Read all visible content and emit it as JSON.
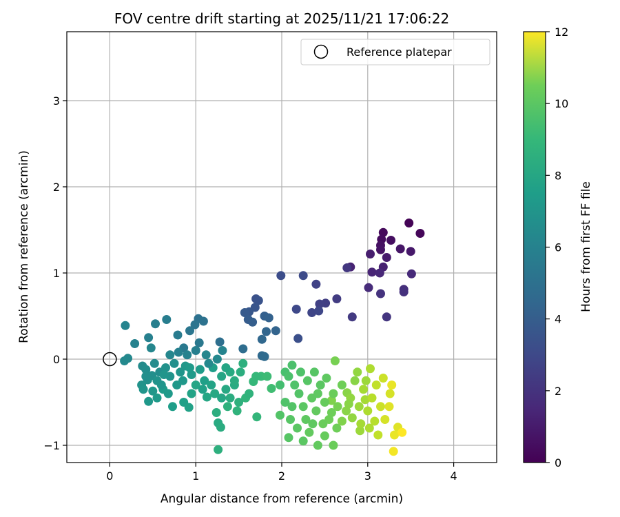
{
  "chart_data": {
    "type": "scatter",
    "title": "FOV centre drift starting at 2025/11/21 17:06:22",
    "xlabel": "Angular distance from reference (arcmin)",
    "ylabel": "Rotation from reference (arcmin)",
    "xlim": [
      -0.5,
      4.5
    ],
    "ylim": [
      -1.2,
      3.8
    ],
    "xticks": [
      0,
      1,
      2,
      3,
      4
    ],
    "yticks": [
      -1,
      0,
      1,
      2,
      3
    ],
    "grid": true,
    "legend": {
      "placement": "top-right",
      "entries": [
        {
          "label": "Reference platepar",
          "marker": "open-circle"
        }
      ]
    },
    "reference_point": {
      "x": 0,
      "y": 0
    },
    "colorbar": {
      "label": "Hours from first FF file",
      "range": [
        0,
        12
      ],
      "ticks": [
        0,
        2,
        4,
        6,
        8,
        10,
        12
      ],
      "colormap": "viridis"
    },
    "series": [
      {
        "marker": "filled-circle",
        "color_by": "hours",
        "points": [
          {
            "x": 3.48,
            "y": 1.58,
            "c": 0.1
          },
          {
            "x": 3.61,
            "y": 1.46,
            "c": 0.2
          },
          {
            "x": 3.18,
            "y": 1.47,
            "c": 0.3
          },
          {
            "x": 3.16,
            "y": 1.39,
            "c": 0.4
          },
          {
            "x": 3.27,
            "y": 1.38,
            "c": 0.5
          },
          {
            "x": 3.15,
            "y": 1.32,
            "c": 0.6
          },
          {
            "x": 3.15,
            "y": 1.27,
            "c": 0.7
          },
          {
            "x": 3.38,
            "y": 1.28,
            "c": 0.8
          },
          {
            "x": 3.5,
            "y": 1.25,
            "c": 0.9
          },
          {
            "x": 3.22,
            "y": 1.18,
            "c": 1.0
          },
          {
            "x": 3.03,
            "y": 1.22,
            "c": 1.1
          },
          {
            "x": 3.18,
            "y": 1.07,
            "c": 1.2
          },
          {
            "x": 2.8,
            "y": 1.07,
            "c": 1.3
          },
          {
            "x": 3.05,
            "y": 1.01,
            "c": 1.4
          },
          {
            "x": 3.14,
            "y": 1.0,
            "c": 1.5
          },
          {
            "x": 3.51,
            "y": 0.99,
            "c": 1.6
          },
          {
            "x": 3.01,
            "y": 0.83,
            "c": 1.7
          },
          {
            "x": 3.42,
            "y": 0.81,
            "c": 1.8
          },
          {
            "x": 3.42,
            "y": 0.78,
            "c": 1.9
          },
          {
            "x": 3.15,
            "y": 0.76,
            "c": 2.0
          },
          {
            "x": 3.22,
            "y": 0.49,
            "c": 2.1
          },
          {
            "x": 2.76,
            "y": 1.06,
            "c": 2.2
          },
          {
            "x": 2.82,
            "y": 0.49,
            "c": 2.3
          },
          {
            "x": 2.64,
            "y": 0.7,
            "c": 2.4
          },
          {
            "x": 2.51,
            "y": 0.65,
            "c": 2.5
          },
          {
            "x": 2.44,
            "y": 0.64,
            "c": 2.6
          },
          {
            "x": 2.4,
            "y": 0.87,
            "c": 2.7
          },
          {
            "x": 2.35,
            "y": 0.54,
            "c": 2.8
          },
          {
            "x": 2.43,
            "y": 0.56,
            "c": 2.9
          },
          {
            "x": 2.17,
            "y": 0.58,
            "c": 3.0
          },
          {
            "x": 2.25,
            "y": 0.97,
            "c": 3.1
          },
          {
            "x": 1.99,
            "y": 0.97,
            "c": 3.2
          },
          {
            "x": 2.19,
            "y": 0.24,
            "c": 3.3
          },
          {
            "x": 1.7,
            "y": 0.7,
            "c": 3.4
          },
          {
            "x": 1.73,
            "y": 0.68,
            "c": 3.5
          },
          {
            "x": 1.69,
            "y": 0.6,
            "c": 3.6
          },
          {
            "x": 1.62,
            "y": 0.55,
            "c": 3.7
          },
          {
            "x": 1.57,
            "y": 0.54,
            "c": 3.8
          },
          {
            "x": 1.61,
            "y": 0.46,
            "c": 3.9
          },
          {
            "x": 1.66,
            "y": 0.43,
            "c": 4.0
          },
          {
            "x": 1.8,
            "y": 0.5,
            "c": 4.1
          },
          {
            "x": 1.85,
            "y": 0.48,
            "c": 4.2
          },
          {
            "x": 1.93,
            "y": 0.33,
            "c": 4.3
          },
          {
            "x": 1.82,
            "y": 0.32,
            "c": 4.4
          },
          {
            "x": 1.77,
            "y": 0.23,
            "c": 4.5
          },
          {
            "x": 1.77,
            "y": 0.04,
            "c": 4.6
          },
          {
            "x": 1.8,
            "y": 0.03,
            "c": 4.7
          },
          {
            "x": 1.55,
            "y": 0.12,
            "c": 4.8
          },
          {
            "x": 1.28,
            "y": 0.2,
            "c": 4.9
          },
          {
            "x": 1.03,
            "y": 0.47,
            "c": 5.0
          },
          {
            "x": 1.09,
            "y": 0.44,
            "c": 5.1
          },
          {
            "x": 0.99,
            "y": 0.4,
            "c": 5.2
          },
          {
            "x": 0.93,
            "y": 0.33,
            "c": 5.3
          },
          {
            "x": 1.04,
            "y": 0.19,
            "c": 5.4
          },
          {
            "x": 0.86,
            "y": 0.13,
            "c": 5.5
          },
          {
            "x": 0.79,
            "y": 0.28,
            "c": 5.6
          },
          {
            "x": 0.66,
            "y": 0.46,
            "c": 5.7
          },
          {
            "x": 0.53,
            "y": 0.41,
            "c": 5.8
          },
          {
            "x": 0.45,
            "y": 0.25,
            "c": 5.9
          },
          {
            "x": 0.29,
            "y": 0.18,
            "c": 6.0
          },
          {
            "x": 0.18,
            "y": 0.39,
            "c": 6.1
          },
          {
            "x": 0.48,
            "y": 0.13,
            "c": 6.2
          },
          {
            "x": 0.21,
            "y": 0.01,
            "c": 6.3
          },
          {
            "x": 0.17,
            "y": -0.02,
            "c": 6.4
          },
          {
            "x": 0.38,
            "y": -0.08,
            "c": 6.5
          },
          {
            "x": 0.42,
            "y": -0.12,
            "c": 6.6
          },
          {
            "x": 0.49,
            "y": -0.19,
            "c": 6.7
          },
          {
            "x": 0.44,
            "y": -0.24,
            "c": 6.8
          },
          {
            "x": 0.37,
            "y": -0.3,
            "c": 6.9
          },
          {
            "x": 0.39,
            "y": -0.35,
            "c": 7.0
          },
          {
            "x": 0.5,
            "y": -0.37,
            "c": 7.1
          },
          {
            "x": 0.45,
            "y": -0.49,
            "c": 7.2
          },
          {
            "x": 0.55,
            "y": -0.45,
            "c": 7.3
          },
          {
            "x": 0.62,
            "y": -0.35,
            "c": 7.4
          },
          {
            "x": 0.73,
            "y": -0.55,
            "c": 7.5
          },
          {
            "x": 0.86,
            "y": -0.5,
            "c": 7.6
          },
          {
            "x": 0.92,
            "y": -0.56,
            "c": 7.7
          },
          {
            "x": 0.95,
            "y": -0.4,
            "c": 7.8
          },
          {
            "x": 1.0,
            "y": -0.3,
            "c": 7.9
          },
          {
            "x": 1.13,
            "y": -0.44,
            "c": 8.0
          },
          {
            "x": 1.22,
            "y": -0.4,
            "c": 8.1
          },
          {
            "x": 1.26,
            "y": -0.74,
            "c": 8.2
          },
          {
            "x": 1.29,
            "y": -0.79,
            "c": 8.3
          },
          {
            "x": 1.24,
            "y": -0.62,
            "c": 8.4
          },
          {
            "x": 1.26,
            "y": -1.05,
            "c": 8.5
          },
          {
            "x": 1.37,
            "y": -0.55,
            "c": 8.6
          },
          {
            "x": 1.48,
            "y": -0.6,
            "c": 8.7
          },
          {
            "x": 1.58,
            "y": -0.45,
            "c": 8.8
          },
          {
            "x": 1.71,
            "y": -0.67,
            "c": 8.9
          },
          {
            "x": 1.67,
            "y": -0.26,
            "c": 9.0
          },
          {
            "x": 1.76,
            "y": -0.2,
            "c": 9.1
          },
          {
            "x": 1.83,
            "y": -0.2,
            "c": 9.2
          },
          {
            "x": 1.88,
            "y": -0.34,
            "c": 9.3
          },
          {
            "x": 1.98,
            "y": -0.3,
            "c": 9.4
          },
          {
            "x": 2.04,
            "y": -0.15,
            "c": 9.5
          },
          {
            "x": 2.12,
            "y": -0.07,
            "c": 9.6
          },
          {
            "x": 2.04,
            "y": -0.5,
            "c": 9.7
          },
          {
            "x": 1.98,
            "y": -0.65,
            "c": 9.8
          },
          {
            "x": 2.08,
            "y": -0.91,
            "c": 9.9
          },
          {
            "x": 2.25,
            "y": -0.95,
            "c": 10.0
          },
          {
            "x": 2.36,
            "y": -0.75,
            "c": 10.1
          },
          {
            "x": 2.42,
            "y": -1.0,
            "c": 10.2
          },
          {
            "x": 2.5,
            "y": -0.89,
            "c": 10.3
          },
          {
            "x": 2.6,
            "y": -1.0,
            "c": 10.4
          },
          {
            "x": 2.64,
            "y": -0.8,
            "c": 10.5
          },
          {
            "x": 2.62,
            "y": -0.02,
            "c": 10.6
          },
          {
            "x": 2.58,
            "y": -0.48,
            "c": 10.7
          },
          {
            "x": 2.76,
            "y": -0.39,
            "c": 10.8
          },
          {
            "x": 2.82,
            "y": -0.68,
            "c": 10.9
          },
          {
            "x": 2.91,
            "y": -0.83,
            "c": 11.0
          },
          {
            "x": 2.97,
            "y": -0.47,
            "c": 11.1
          },
          {
            "x": 3.03,
            "y": -0.11,
            "c": 11.2
          },
          {
            "x": 3.08,
            "y": -0.72,
            "c": 11.3
          },
          {
            "x": 3.12,
            "y": -0.88,
            "c": 11.4
          },
          {
            "x": 3.18,
            "y": -0.22,
            "c": 11.5
          },
          {
            "x": 3.26,
            "y": -0.4,
            "c": 11.6
          },
          {
            "x": 3.35,
            "y": -0.79,
            "c": 11.7
          },
          {
            "x": 3.31,
            "y": -0.88,
            "c": 11.8
          },
          {
            "x": 3.3,
            "y": -1.07,
            "c": 11.9
          },
          {
            "x": 3.4,
            "y": -0.85,
            "c": 12.0
          },
          {
            "x": 0.58,
            "y": -0.15,
            "c": 6.6
          },
          {
            "x": 0.65,
            "y": -0.1,
            "c": 6.8
          },
          {
            "x": 0.7,
            "y": -0.2,
            "c": 6.9
          },
          {
            "x": 0.75,
            "y": -0.05,
            "c": 6.7
          },
          {
            "x": 0.82,
            "y": -0.15,
            "c": 7.0
          },
          {
            "x": 0.78,
            "y": -0.3,
            "c": 7.2
          },
          {
            "x": 0.88,
            "y": -0.08,
            "c": 7.1
          },
          {
            "x": 0.95,
            "y": -0.18,
            "c": 7.3
          },
          {
            "x": 1.05,
            "y": -0.12,
            "c": 7.4
          },
          {
            "x": 1.1,
            "y": -0.25,
            "c": 7.6
          },
          {
            "x": 1.18,
            "y": -0.3,
            "c": 7.8
          },
          {
            "x": 1.2,
            "y": -0.1,
            "c": 7.5
          },
          {
            "x": 1.3,
            "y": -0.2,
            "c": 7.9
          },
          {
            "x": 1.35,
            "y": -0.35,
            "c": 8.1
          },
          {
            "x": 1.4,
            "y": -0.45,
            "c": 8.3
          },
          {
            "x": 1.45,
            "y": -0.3,
            "c": 8.2
          },
          {
            "x": 1.52,
            "y": -0.15,
            "c": 8.4
          },
          {
            "x": 1.55,
            "y": -0.05,
            "c": 8.5
          },
          {
            "x": 1.62,
            "y": -0.4,
            "c": 8.7
          },
          {
            "x": 0.6,
            "y": -0.3,
            "c": 7.0
          },
          {
            "x": 0.68,
            "y": -0.4,
            "c": 7.3
          },
          {
            "x": 0.52,
            "y": -0.05,
            "c": 6.5
          },
          {
            "x": 0.8,
            "y": 0.08,
            "c": 5.9
          },
          {
            "x": 0.9,
            "y": 0.05,
            "c": 6.0
          },
          {
            "x": 1.0,
            "y": 0.1,
            "c": 5.8
          },
          {
            "x": 1.12,
            "y": 0.05,
            "c": 6.2
          },
          {
            "x": 1.15,
            "y": -0.05,
            "c": 6.4
          },
          {
            "x": 1.25,
            "y": 0.0,
            "c": 6.3
          },
          {
            "x": 1.31,
            "y": 0.1,
            "c": 6.1
          },
          {
            "x": 0.7,
            "y": 0.05,
            "c": 6.2
          },
          {
            "x": 2.15,
            "y": -0.3,
            "c": 9.7
          },
          {
            "x": 2.2,
            "y": -0.4,
            "c": 9.8
          },
          {
            "x": 2.25,
            "y": -0.55,
            "c": 10.0
          },
          {
            "x": 2.3,
            "y": -0.25,
            "c": 9.9
          },
          {
            "x": 2.35,
            "y": -0.45,
            "c": 10.1
          },
          {
            "x": 2.4,
            "y": -0.6,
            "c": 10.2
          },
          {
            "x": 2.45,
            "y": -0.3,
            "c": 10.0
          },
          {
            "x": 2.5,
            "y": -0.5,
            "c": 10.3
          },
          {
            "x": 2.55,
            "y": -0.7,
            "c": 10.5
          },
          {
            "x": 2.6,
            "y": -0.4,
            "c": 10.4
          },
          {
            "x": 2.65,
            "y": -0.55,
            "c": 10.6
          },
          {
            "x": 2.7,
            "y": -0.3,
            "c": 10.5
          },
          {
            "x": 2.75,
            "y": -0.6,
            "c": 10.8
          },
          {
            "x": 2.8,
            "y": -0.45,
            "c": 10.9
          },
          {
            "x": 2.85,
            "y": -0.25,
            "c": 10.8
          },
          {
            "x": 2.9,
            "y": -0.55,
            "c": 11.0
          },
          {
            "x": 2.95,
            "y": -0.35,
            "c": 11.1
          },
          {
            "x": 3.0,
            "y": -0.6,
            "c": 11.2
          },
          {
            "x": 3.05,
            "y": -0.45,
            "c": 11.3
          },
          {
            "x": 3.1,
            "y": -0.3,
            "c": 11.4
          },
          {
            "x": 3.15,
            "y": -0.55,
            "c": 11.5
          },
          {
            "x": 3.2,
            "y": -0.7,
            "c": 11.6
          },
          {
            "x": 3.25,
            "y": -0.55,
            "c": 11.7
          },
          {
            "x": 3.28,
            "y": -0.3,
            "c": 11.8
          },
          {
            "x": 2.1,
            "y": -0.7,
            "c": 9.9
          },
          {
            "x": 2.18,
            "y": -0.8,
            "c": 10.0
          },
          {
            "x": 2.28,
            "y": -0.7,
            "c": 10.1
          },
          {
            "x": 2.32,
            "y": -0.85,
            "c": 10.2
          },
          {
            "x": 2.48,
            "y": -0.75,
            "c": 10.4
          },
          {
            "x": 2.7,
            "y": -0.72,
            "c": 10.7
          },
          {
            "x": 2.08,
            "y": -0.2,
            "c": 9.6
          },
          {
            "x": 2.22,
            "y": -0.15,
            "c": 9.7
          },
          {
            "x": 2.38,
            "y": -0.15,
            "c": 9.9
          },
          {
            "x": 2.52,
            "y": -0.22,
            "c": 10.1
          },
          {
            "x": 2.88,
            "y": -0.15,
            "c": 10.9
          },
          {
            "x": 2.92,
            "y": -0.75,
            "c": 11.1
          },
          {
            "x": 3.02,
            "y": -0.8,
            "c": 11.2
          },
          {
            "x": 2.12,
            "y": -0.55,
            "c": 9.8
          },
          {
            "x": 2.42,
            "y": -0.4,
            "c": 10.1
          },
          {
            "x": 2.58,
            "y": -0.62,
            "c": 10.5
          },
          {
            "x": 2.78,
            "y": -0.52,
            "c": 10.8
          },
          {
            "x": 2.98,
            "y": -0.25,
            "c": 11.0
          },
          {
            "x": 0.42,
            "y": -0.2,
            "c": 6.7
          },
          {
            "x": 0.55,
            "y": -0.25,
            "c": 6.9
          },
          {
            "x": 0.63,
            "y": -0.18,
            "c": 7.0
          },
          {
            "x": 0.85,
            "y": -0.25,
            "c": 7.2
          },
          {
            "x": 0.93,
            "y": -0.1,
            "c": 7.3
          },
          {
            "x": 1.08,
            "y": -0.35,
            "c": 7.7
          },
          {
            "x": 1.4,
            "y": -0.15,
            "c": 8.2
          },
          {
            "x": 1.5,
            "y": -0.5,
            "c": 8.6
          },
          {
            "x": 1.7,
            "y": -0.2,
            "c": 9.0
          },
          {
            "x": 1.3,
            "y": -0.45,
            "c": 8.0
          },
          {
            "x": 1.35,
            "y": -0.1,
            "c": 7.9
          },
          {
            "x": 1.45,
            "y": -0.25,
            "c": 8.3
          }
        ]
      }
    ]
  }
}
